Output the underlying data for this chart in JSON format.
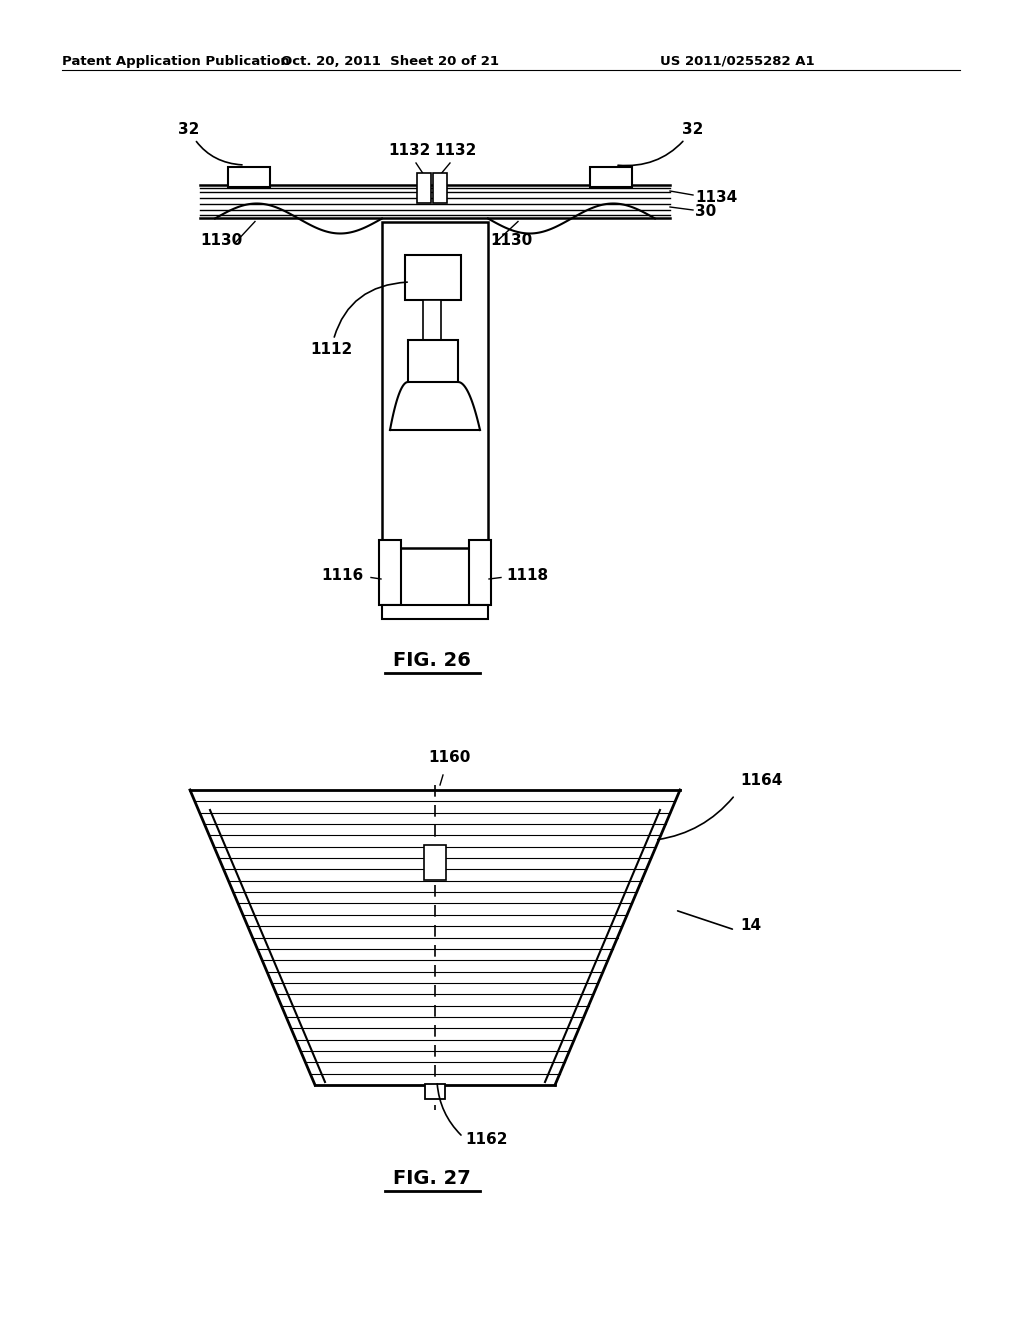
{
  "bg_color": "#ffffff",
  "line_color": "#000000",
  "header_left": "Patent Application Publication",
  "header_center": "Oct. 20, 2011  Sheet 20 of 21",
  "header_right": "US 2011/0255282 A1"
}
